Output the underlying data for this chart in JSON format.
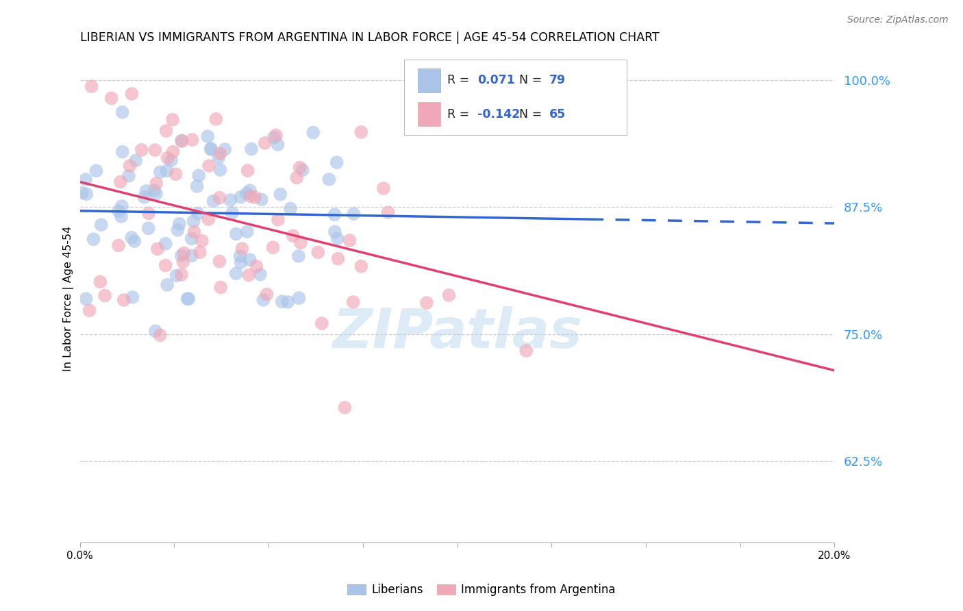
{
  "title": "LIBERIAN VS IMMIGRANTS FROM ARGENTINA IN LABOR FORCE | AGE 45-54 CORRELATION CHART",
  "source": "Source: ZipAtlas.com",
  "ylabel": "In Labor Force | Age 45-54",
  "xlim": [
    0.0,
    0.2
  ],
  "ylim": [
    0.545,
    1.025
  ],
  "yticks": [
    0.625,
    0.75,
    0.875,
    1.0
  ],
  "ytick_labels": [
    "62.5%",
    "75.0%",
    "87.5%",
    "100.0%"
  ],
  "xticks": [
    0.0,
    0.025,
    0.05,
    0.075,
    0.1,
    0.125,
    0.15,
    0.175,
    0.2
  ],
  "xtick_labels": [
    "0.0%",
    "",
    "",
    "",
    "",
    "",
    "",
    "",
    "20.0%"
  ],
  "blue_R": 0.071,
  "blue_N": 79,
  "pink_R": -0.142,
  "pink_N": 65,
  "blue_color": "#aac4e8",
  "pink_color": "#f0a8b8",
  "blue_line_color": "#3366cc",
  "pink_line_color": "#e04070",
  "blue_line_solid_end": 0.135,
  "legend_label_blue": "Liberians",
  "legend_label_pink": "Immigrants from Argentina",
  "watermark": "ZIPatlas",
  "blue_intercept": 0.863,
  "blue_slope": 0.06,
  "pink_intercept": 0.893,
  "pink_slope": -0.62
}
